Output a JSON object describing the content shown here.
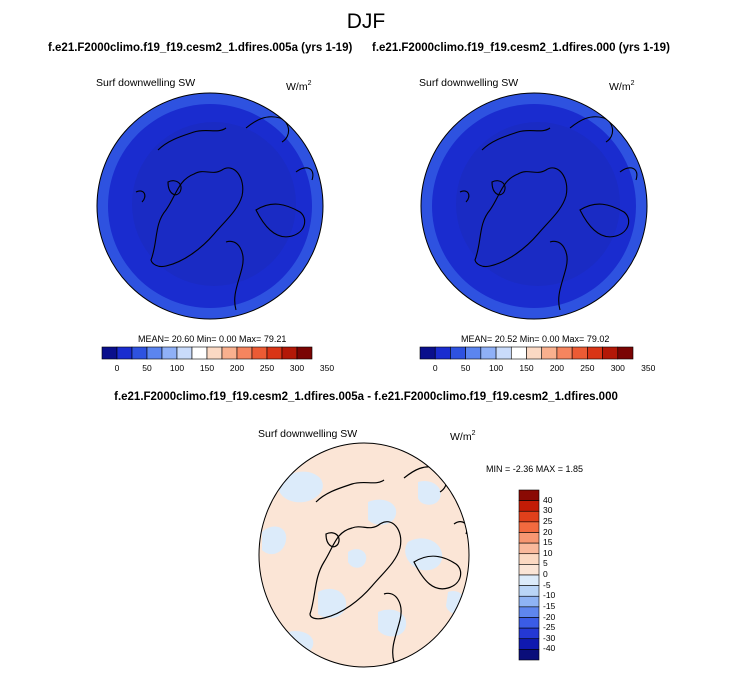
{
  "title": "DJF",
  "left_panel": {
    "case": "f.e21.F2000climo.f19_f19.cesm2_1.dfires.005a (yrs 1-19)",
    "variable": "Surf downwelling SW",
    "units": "W/m",
    "units_exp": "2",
    "stats": "MEAN= 20.60  Min=  0.00  Max= 79.21"
  },
  "right_panel": {
    "case": "f.e21.F2000climo.f19_f19.cesm2_1.dfires.000 (yrs 1-19)",
    "variable": "Surf downwelling SW",
    "units": "W/m",
    "units_exp": "2",
    "stats": "MEAN= 20.52  Min=  0.00  Max= 79.02"
  },
  "diff_panel": {
    "title": "f.e21.F2000climo.f19_f19.cesm2_1.dfires.005a - f.e21.F2000climo.f19_f19.cesm2_1.dfires.000",
    "variable": "Surf downwelling SW",
    "units": "W/m",
    "units_exp": "2",
    "stats": "MIN = -2.36 MAX =  1.85"
  },
  "abs_colorbar": {
    "colors": [
      "#0a0f8c",
      "#1a2ccf",
      "#2e52e0",
      "#5b85f0",
      "#8fb0f7",
      "#c9dbfb",
      "#ffffff",
      "#fbd9c4",
      "#f9b08e",
      "#f5855f",
      "#ec5b34",
      "#d93516",
      "#b31807",
      "#7a0403"
    ],
    "tick_labels": [
      "0",
      "50",
      "100",
      "150",
      "200",
      "250",
      "300",
      "350"
    ]
  },
  "diff_colorbar": {
    "colors_top_to_bottom": [
      "#8a0a04",
      "#c21c06",
      "#e0401b",
      "#f26a3f",
      "#f79772",
      "#fab99c",
      "#fcd9c2",
      "#fbe5d6",
      "#dcebfa",
      "#bad5f7",
      "#8fb3f4",
      "#5f86ee",
      "#3b5ce6",
      "#2438d4",
      "#0f19b0",
      "#0a0e7a"
    ],
    "tick_labels": [
      "40",
      "30",
      "25",
      "20",
      "15",
      "10",
      "5",
      "0",
      "-5",
      "-10",
      "-15",
      "-20",
      "-25",
      "-30",
      "-40"
    ]
  }
}
